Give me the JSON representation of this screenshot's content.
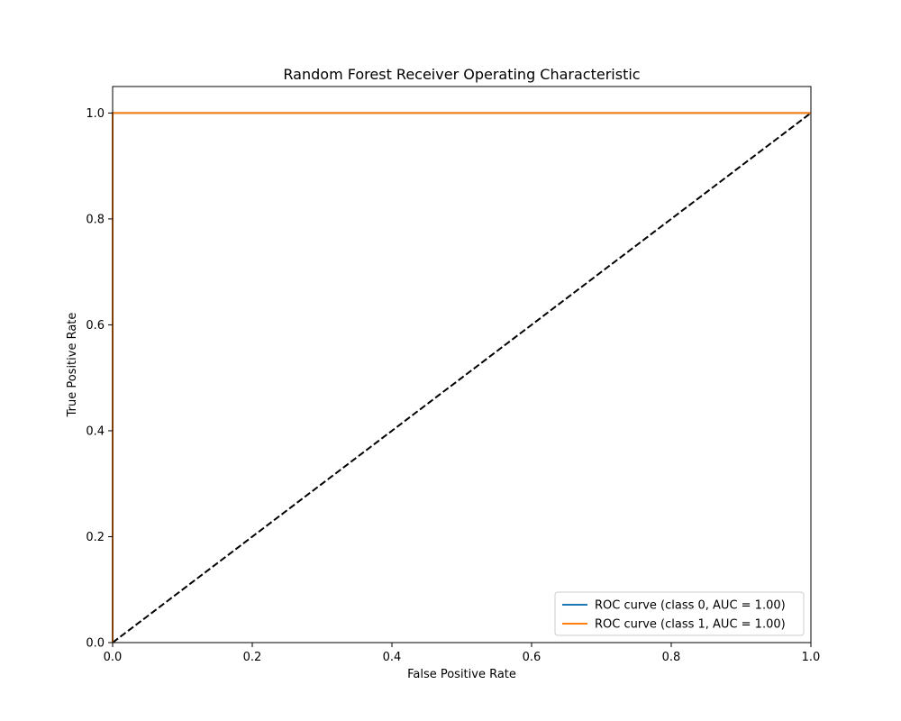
{
  "chart_data": {
    "type": "line",
    "title": "Random Forest Receiver Operating Characteristic",
    "xlabel": "False Positive Rate",
    "ylabel": "True Positive Rate",
    "xlim": [
      0.0,
      1.0
    ],
    "ylim": [
      0.0,
      1.05
    ],
    "x_ticks": [
      {
        "value": 0.0,
        "label": "0.0"
      },
      {
        "value": 0.2,
        "label": "0.2"
      },
      {
        "value": 0.4,
        "label": "0.4"
      },
      {
        "value": 0.6,
        "label": "0.6"
      },
      {
        "value": 0.8,
        "label": "0.8"
      },
      {
        "value": 1.0,
        "label": "1.0"
      }
    ],
    "y_ticks": [
      {
        "value": 0.0,
        "label": "0.0"
      },
      {
        "value": 0.2,
        "label": "0.2"
      },
      {
        "value": 0.4,
        "label": "0.4"
      },
      {
        "value": 0.6,
        "label": "0.6"
      },
      {
        "value": 0.8,
        "label": "0.8"
      },
      {
        "value": 1.0,
        "label": "1.0"
      }
    ],
    "grid": false,
    "legend_position": "lower-right",
    "series": [
      {
        "name": "ROC curve (class 0, AUC = 1.00)",
        "color": "#1f77b4",
        "style": "solid",
        "x": [
          0.0,
          0.0,
          1.0
        ],
        "y": [
          0.0,
          1.0,
          1.0
        ]
      },
      {
        "name": "ROC curve (class 1, AUC = 1.00)",
        "color": "#ff7f0e",
        "style": "solid",
        "x": [
          0.0,
          0.0,
          1.0
        ],
        "y": [
          0.0,
          1.0,
          1.0
        ]
      }
    ],
    "reference_line": {
      "color": "#000000",
      "style": "dashed",
      "x": [
        0.0,
        1.0
      ],
      "y": [
        0.0,
        1.0
      ]
    }
  }
}
